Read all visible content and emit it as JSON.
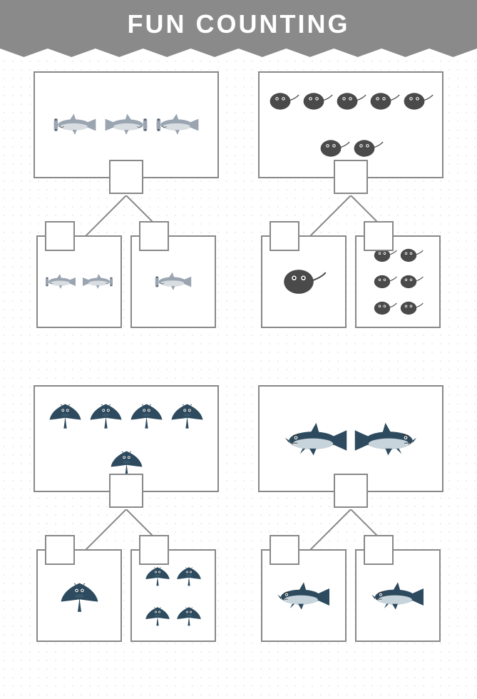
{
  "header": {
    "title": "FUN COUNTING",
    "bg_color": "#8a8a8a",
    "text_color": "#ffffff",
    "title_fontsize": 36
  },
  "worksheet": {
    "dot_color": "#e8e8e8",
    "border_color": "#888888",
    "bg_color": "#ffffff"
  },
  "blocks": [
    {
      "id": "hammerhead",
      "animal": "hammerhead-shark",
      "color_body": "#9aa5b1",
      "color_belly": "#d8dde2",
      "main_count": 3,
      "main_size": 70,
      "sub_left_count": 2,
      "sub_left_size": 50,
      "sub_right_count": 1,
      "sub_right_size": 60
    },
    {
      "id": "stingray",
      "animal": "stingray",
      "color_body": "#4a4a4a",
      "color_belly": "#6a6a6a",
      "main_count": 7,
      "main_size": 45,
      "sub_left_count": 1,
      "sub_left_size": 65,
      "sub_right_count": 6,
      "sub_right_size": 35
    },
    {
      "id": "manta",
      "animal": "manta-ray",
      "color_body": "#2d4a5e",
      "color_belly": "#4a6b7e",
      "main_count": 5,
      "main_size": 55,
      "sub_left_count": 1,
      "sub_left_size": 65,
      "sub_right_count": 4,
      "sub_right_size": 42
    },
    {
      "id": "shark",
      "animal": "shark",
      "color_body": "#2d4a5e",
      "color_belly": "#c8d4dc",
      "main_count": 2,
      "main_size": 95,
      "sub_left_count": 1,
      "sub_left_size": 80,
      "sub_right_count": 1,
      "sub_right_size": 80
    }
  ]
}
